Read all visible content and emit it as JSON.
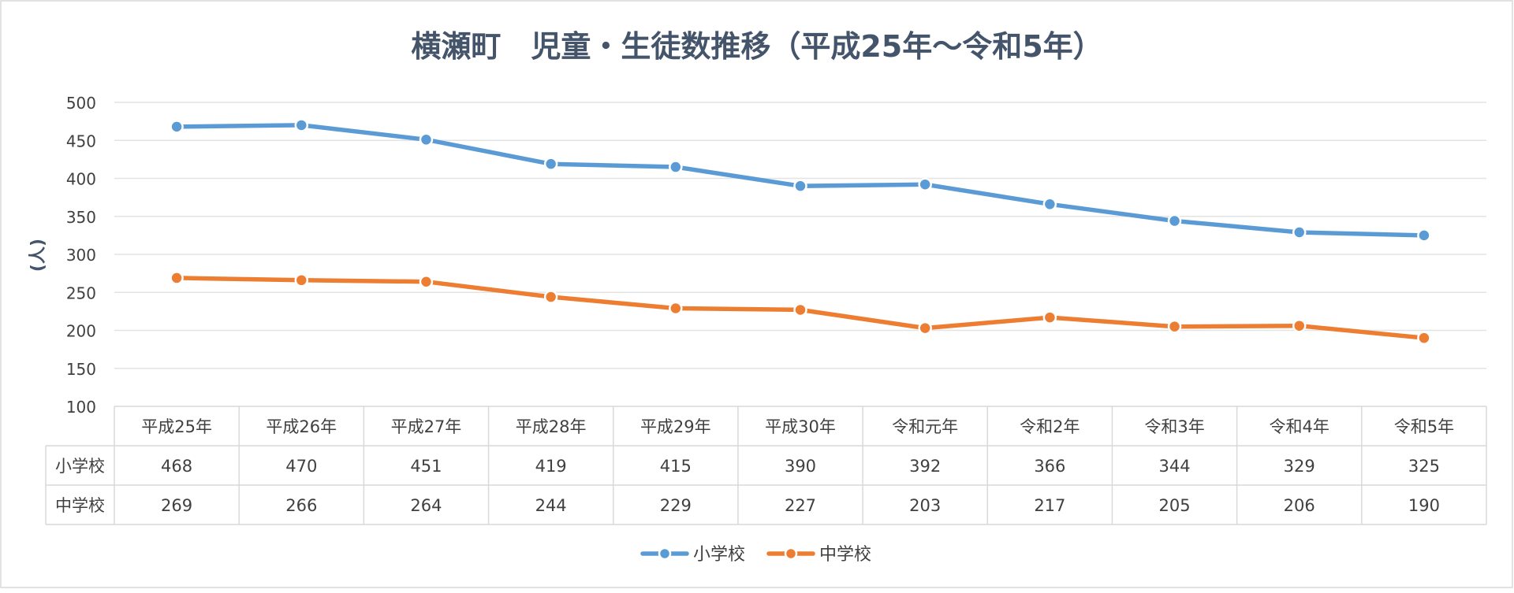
{
  "chart_data": {
    "type": "line",
    "title": "横瀬町　児童・生徒数推移（平成25年～令和5年）",
    "ylabel": "(人)",
    "xlabel": "",
    "ylim": [
      100,
      500
    ],
    "yticks": [
      100,
      150,
      200,
      250,
      300,
      350,
      400,
      450,
      500
    ],
    "grid": true,
    "legend_position": "bottom",
    "has_data_table": true,
    "categories": [
      "平成25年",
      "平成26年",
      "平成27年",
      "平成28年",
      "平成29年",
      "平成30年",
      "令和元年",
      "令和2年",
      "令和3年",
      "令和4年",
      "令和5年"
    ],
    "series": [
      {
        "name": "小学校",
        "color": "#5B9BD5",
        "values": [
          468,
          470,
          451,
          419,
          415,
          390,
          392,
          366,
          344,
          329,
          325
        ]
      },
      {
        "name": "中学校",
        "color": "#ED7D31",
        "values": [
          269,
          266,
          264,
          244,
          229,
          227,
          203,
          217,
          205,
          206,
          190
        ]
      }
    ]
  }
}
